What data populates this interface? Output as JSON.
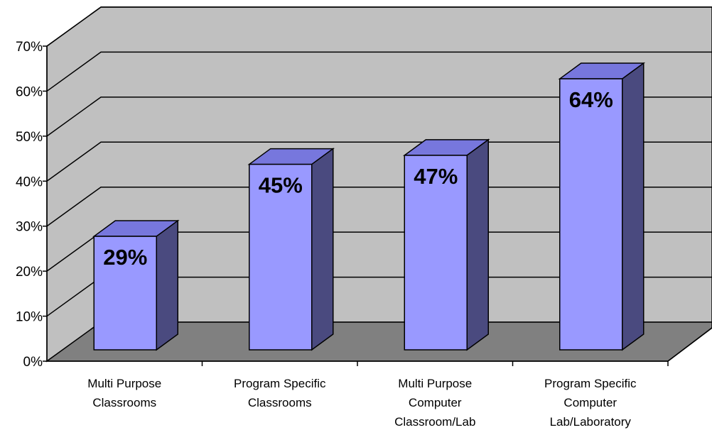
{
  "chart_data": {
    "type": "bar",
    "title": "",
    "xlabel": "",
    "ylabel": "",
    "ylim": [
      0,
      70
    ],
    "y_ticks": [
      "0%",
      "10%",
      "20%",
      "30%",
      "40%",
      "50%",
      "60%",
      "70%"
    ],
    "categories": [
      [
        "Multi Purpose",
        "Classrooms"
      ],
      [
        "Program Specific",
        "Classrooms"
      ],
      [
        "Multi Purpose",
        "Computer",
        "Classroom/Lab"
      ],
      [
        "Program Specific",
        "Computer",
        "Lab/Laboratory"
      ]
    ],
    "values": [
      29,
      45,
      47,
      64
    ],
    "data_labels": [
      "29%",
      "45%",
      "47%",
      "64%"
    ],
    "grid": true,
    "legend": "none",
    "style": "3d",
    "colors": {
      "bar_front": "#9999FF",
      "bar_top": "#7777DD",
      "bar_side": "#4A4A7F",
      "wall": "#C0C0C0",
      "floor": "#808080",
      "grid": "#000000"
    }
  }
}
